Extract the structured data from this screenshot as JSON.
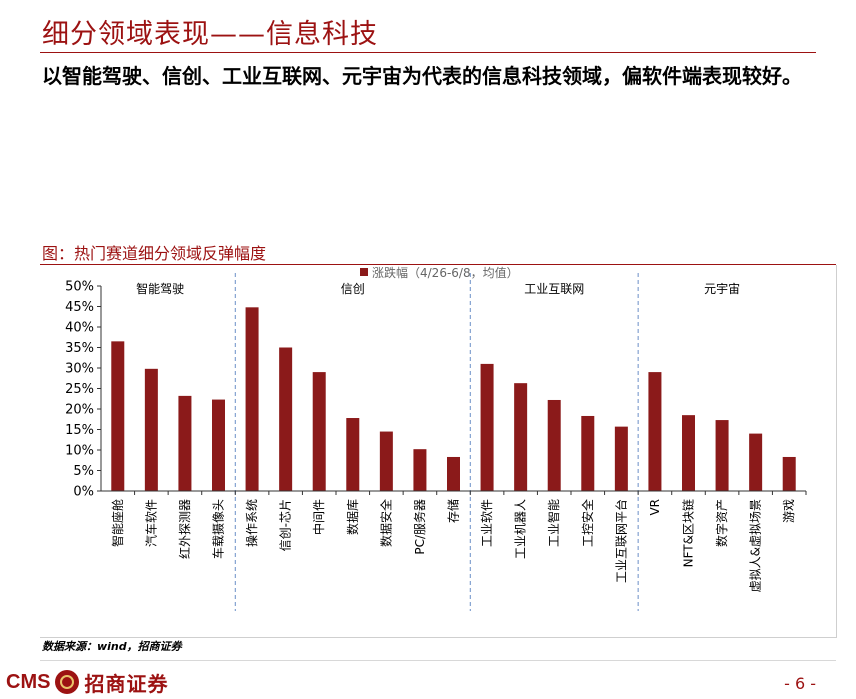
{
  "page": {
    "title": "细分领域表现——信息科技",
    "summary": "以智能驾驶、信创、工业互联网、元宇宙为代表的信息科技领域，偏软件端表现较好。",
    "figure_title": "图：热门赛道细分领域反弹幅度",
    "source": "数据来源：wind，招商证券",
    "page_number": "- 6 -"
  },
  "logo": {
    "brand_en": "CMS",
    "brand_cn": "招商证券"
  },
  "chart_data": {
    "type": "bar",
    "legend": "涨跌幅（4/26-6/8，均值）",
    "legend_position": "top",
    "ylim": [
      0,
      50
    ],
    "yticks": [
      "0%",
      "5%",
      "10%",
      "15%",
      "20%",
      "25%",
      "30%",
      "35%",
      "40%",
      "45%",
      "50%"
    ],
    "colors": {
      "bar": "#8b1a1a",
      "divider": "#6b8fc7"
    },
    "groups": [
      {
        "label": "智能驾驶",
        "count": 4
      },
      {
        "label": "信创",
        "count": 7
      },
      {
        "label": "工业互联网",
        "count": 5
      },
      {
        "label": "元宇宙",
        "count": 5
      }
    ],
    "categories": [
      "智能座舱",
      "汽车软件",
      "红外探测器",
      "车载摄像头",
      "操作系统",
      "信创-芯片",
      "中间件",
      "数据库",
      "数据安全",
      "PC/服务器",
      "存储",
      "工业软件",
      "工业机器人",
      "工业智能",
      "工控安全",
      "工业互联网平台",
      "VR",
      "NFT&区块链",
      "数字资产",
      "虚拟人&虚拟场景",
      "游戏"
    ],
    "values": [
      36.5,
      29.8,
      23.2,
      22.3,
      44.8,
      35.0,
      29.0,
      17.8,
      14.5,
      10.2,
      8.3,
      31.0,
      26.3,
      22.2,
      18.3,
      15.7,
      29.0,
      18.5,
      17.3,
      14.0,
      8.3
    ]
  }
}
